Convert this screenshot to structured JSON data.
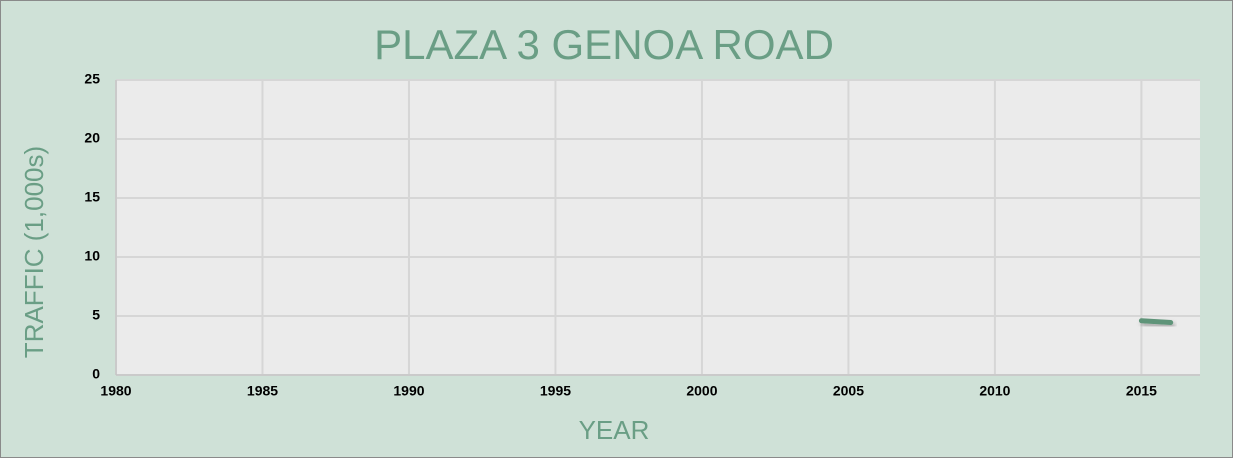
{
  "chart_data": {
    "type": "line",
    "title": "PLAZA 3 GENOA ROAD",
    "x_label": "YEAR",
    "y_label": "TRAFFIC (1,000s)",
    "x": [
      2015,
      2016
    ],
    "values": [
      4.6,
      4.45
    ],
    "color": "#5f9479",
    "xlim": [
      1980,
      2017
    ],
    "xticks": [
      1980,
      1985,
      1990,
      1995,
      2000,
      2005,
      2010,
      2015
    ],
    "ylim": [
      0,
      25
    ],
    "yticks": [
      0,
      5,
      10,
      15,
      20,
      25
    ],
    "grid": true
  }
}
